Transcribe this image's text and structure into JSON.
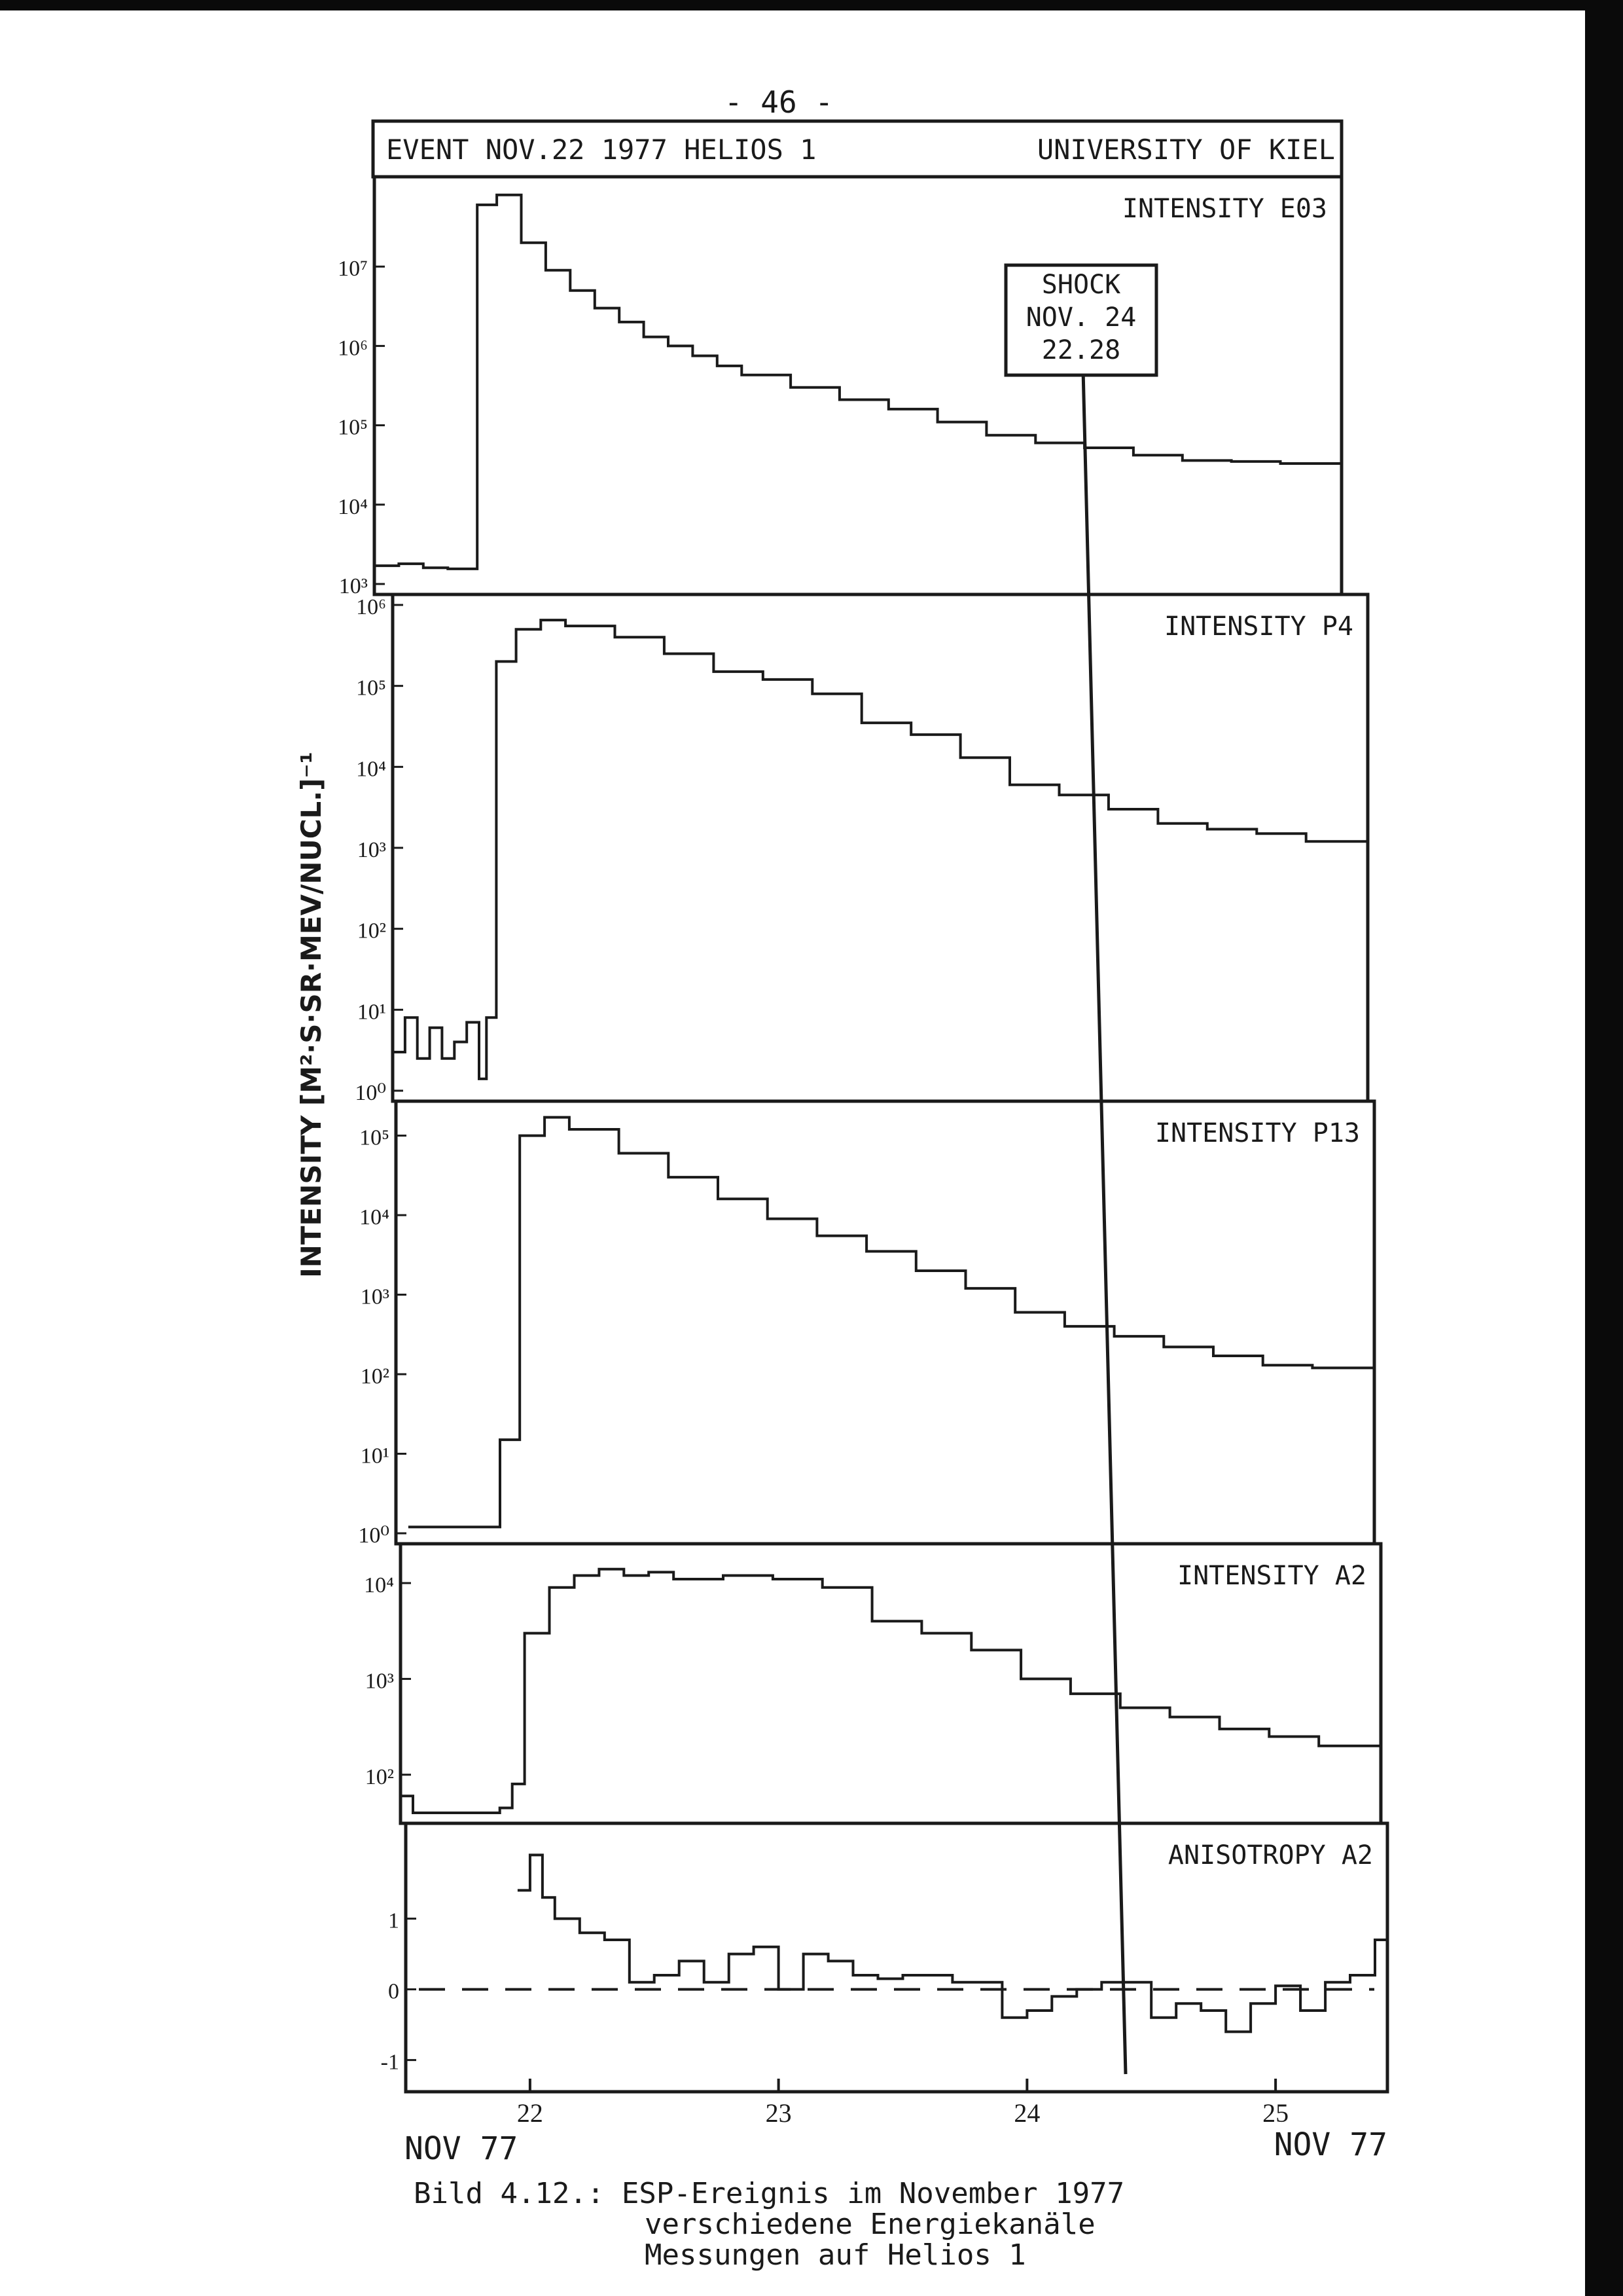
{
  "page_number": "- 46 -",
  "header": {
    "left": "EVENT NOV.22 1977 HELIOS 1",
    "right": "UNIVERSITY OF KIEL"
  },
  "y_axis_label": "INTENSITY [M²·S·SR·MEV/NUCL.]⁻¹",
  "shock_box": {
    "line1": "SHOCK",
    "line2": "NOV. 24",
    "line3": "22.28"
  },
  "x_axis": {
    "ticks": [
      "22",
      "23",
      "24",
      "25"
    ],
    "left_label": "NOV 77",
    "right_label": "NOV 77"
  },
  "caption": {
    "line1": "Bild 4.12.: ESP-Ereignis im November 1977",
    "line2": "verschiedene Energiekanäle",
    "line3": "Messungen auf Helios 1"
  },
  "colors": {
    "ink": "#1a1a1a",
    "paper": "#ffffff"
  },
  "chart_data": [
    {
      "type": "line",
      "title": "INTENSITY E03",
      "y_scale": "log",
      "ylim": [
        1000,
        100000000
      ],
      "y_ticks": [
        "10³",
        "10⁴",
        "10⁵",
        "10⁶",
        "10⁷"
      ],
      "xlim": [
        21.5,
        25.45
      ],
      "series": [
        {
          "x": [
            21.5,
            21.6,
            21.7,
            21.8,
            21.9,
            21.92,
            22.0,
            22.1,
            22.2,
            22.3,
            22.4,
            22.5,
            22.6,
            22.7,
            22.8,
            22.9,
            23.0,
            23.2,
            23.4,
            23.6,
            23.8,
            24.0,
            24.2,
            24.4,
            24.6,
            24.8,
            25.0,
            25.2,
            25.45
          ],
          "y": [
            1700,
            1800,
            1600,
            1550,
            1550,
            60000000,
            80000000,
            20000000,
            9000000,
            5000000,
            3000000,
            2000000,
            1300000,
            1000000,
            750000,
            560000,
            430000,
            300000,
            210000,
            160000,
            110000,
            75000,
            60000,
            52000,
            42000,
            36000,
            35000,
            33000,
            30000
          ]
        }
      ]
    },
    {
      "type": "line",
      "title": "INTENSITY P4",
      "y_scale": "log",
      "ylim": [
        1,
        1000000
      ],
      "y_ticks": [
        "10⁰",
        "10¹",
        "10²",
        "10³",
        "10⁴",
        "10⁵",
        "10⁶"
      ],
      "xlim": [
        21.5,
        25.45
      ],
      "series": [
        {
          "x": [
            21.5,
            21.55,
            21.6,
            21.65,
            21.7,
            21.75,
            21.8,
            21.85,
            21.88,
            21.92,
            22.0,
            22.1,
            22.2,
            22.4,
            22.6,
            22.8,
            23.0,
            23.2,
            23.4,
            23.6,
            23.8,
            24.0,
            24.2,
            24.4,
            24.6,
            24.8,
            25.0,
            25.2,
            25.45
          ],
          "y": [
            3,
            8,
            2.5,
            6,
            2.5,
            4,
            7,
            1.4,
            8,
            200000,
            500000,
            650000,
            550000,
            400000,
            250000,
            150000,
            120000,
            80000,
            35000,
            25000,
            13000,
            6000,
            4500,
            3000,
            2000,
            1700,
            1500,
            1200,
            1000
          ]
        }
      ]
    },
    {
      "type": "line",
      "title": "INTENSITY P13",
      "y_scale": "log",
      "ylim": [
        1,
        200000
      ],
      "y_ticks": [
        "10⁰",
        "10¹",
        "10²",
        "10³",
        "10⁴",
        "10⁵"
      ],
      "xlim": [
        21.5,
        25.45
      ],
      "series": [
        {
          "x": [
            21.55,
            21.9,
            21.92,
            22.0,
            22.1,
            22.2,
            22.4,
            22.6,
            22.8,
            23.0,
            23.2,
            23.4,
            23.6,
            23.8,
            24.0,
            24.2,
            24.4,
            24.6,
            24.8,
            25.0,
            25.2,
            25.45
          ],
          "y": [
            1.2,
            1.2,
            15,
            100000,
            170000,
            120000,
            60000,
            30000,
            16000,
            9000,
            5500,
            3500,
            2000,
            1200,
            600,
            400,
            300,
            220,
            170,
            130,
            120,
            100
          ]
        }
      ]
    },
    {
      "type": "line",
      "title": "INTENSITY A2",
      "y_scale": "log",
      "ylim": [
        40,
        20000
      ],
      "y_ticks": [
        "10²",
        "10³",
        "10⁴"
      ],
      "xlim": [
        21.5,
        25.45
      ],
      "series": [
        {
          "x": [
            21.5,
            21.55,
            21.7,
            21.8,
            21.9,
            21.95,
            22.0,
            22.1,
            22.2,
            22.3,
            22.4,
            22.5,
            22.6,
            22.8,
            23.0,
            23.2,
            23.4,
            23.6,
            23.8,
            24.0,
            24.2,
            24.4,
            24.6,
            24.8,
            25.0,
            25.2,
            25.45
          ],
          "y": [
            60,
            40,
            40,
            40,
            45,
            80,
            3000,
            9000,
            12000,
            14000,
            12000,
            13000,
            11000,
            12000,
            11000,
            9000,
            4000,
            3000,
            2000,
            1000,
            700,
            500,
            400,
            300,
            250,
            200,
            170
          ]
        }
      ]
    },
    {
      "type": "line",
      "title": "ANISOTROPY A2",
      "y_scale": "linear",
      "ylim": [
        -1.3,
        2.2
      ],
      "y_ticks": [
        "-1",
        "0",
        "1"
      ],
      "xlim": [
        21.5,
        25.45
      ],
      "series": [
        {
          "x": [
            21.95,
            22.0,
            22.05,
            22.1,
            22.2,
            22.3,
            22.4,
            22.5,
            22.6,
            22.7,
            22.8,
            22.9,
            23.0,
            23.1,
            23.2,
            23.3,
            23.4,
            23.5,
            23.6,
            23.7,
            23.8,
            23.9,
            24.0,
            24.1,
            24.2,
            24.3,
            24.4,
            24.5,
            24.6,
            24.7,
            24.8,
            24.9,
            25.0,
            25.1,
            25.2,
            25.3,
            25.4,
            25.45
          ],
          "y": [
            1.4,
            1.9,
            1.3,
            1.0,
            0.8,
            0.7,
            0.1,
            0.2,
            0.4,
            0.1,
            0.5,
            0.6,
            0.0,
            0.5,
            0.4,
            0.2,
            0.15,
            0.2,
            0.2,
            0.1,
            0.1,
            -0.4,
            -0.3,
            -0.1,
            0.0,
            0.1,
            0.1,
            -0.4,
            -0.2,
            -0.3,
            -0.6,
            -0.2,
            0.05,
            -0.3,
            0.1,
            0.2,
            0.7,
            0.5
          ]
        }
      ],
      "baseline": 0
    }
  ]
}
